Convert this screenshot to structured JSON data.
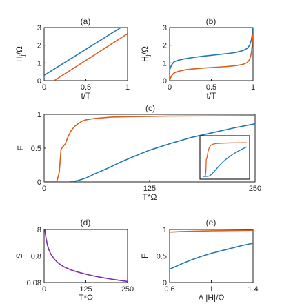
{
  "colors": {
    "blue": "#1f78b4",
    "orange": "#d95f1e",
    "purple": "#7b2fa6",
    "axis": "#222222"
  },
  "chart_data": [
    {
      "panel": "(a)",
      "type": "line",
      "xlabel": "t/T",
      "ylabel": "H_j/Ω",
      "xlim": [
        0,
        1
      ],
      "ylim": [
        0,
        3
      ],
      "xticks": [
        "0",
        "0.5",
        "1"
      ],
      "yticks": [
        "0",
        "1",
        "2",
        "3"
      ],
      "series": [
        {
          "color": "blue",
          "x": [
            0,
            0.92
          ],
          "y": [
            0.3,
            3.0
          ]
        },
        {
          "color": "orange",
          "x": [
            0.12,
            1.0
          ],
          "y": [
            0.0,
            2.65
          ]
        }
      ]
    },
    {
      "panel": "(b)",
      "type": "line",
      "xlabel": "t/T",
      "ylabel": "H_j/Ω",
      "xlim": [
        0,
        1
      ],
      "ylim": [
        0,
        3
      ],
      "xticks": [
        "0",
        "0.5",
        "1"
      ],
      "yticks": [
        "0",
        "1",
        "2",
        "3"
      ],
      "series": [
        {
          "color": "blue",
          "x": [
            0,
            0.02,
            0.05,
            0.1,
            0.2,
            0.3,
            0.4,
            0.5,
            0.6,
            0.7,
            0.8,
            0.88,
            0.93,
            0.96,
            0.98,
            0.99,
            1.0
          ],
          "y": [
            0.6,
            0.85,
            1.05,
            1.15,
            1.25,
            1.32,
            1.38,
            1.43,
            1.48,
            1.53,
            1.6,
            1.7,
            1.82,
            2.0,
            2.3,
            2.6,
            3.0
          ]
        },
        {
          "color": "orange",
          "x": [
            0,
            0.02,
            0.05,
            0.1,
            0.2,
            0.3,
            0.4,
            0.5,
            0.6,
            0.7,
            0.8,
            0.88,
            0.93,
            0.96,
            0.98,
            0.99,
            1.0
          ],
          "y": [
            0.0,
            0.25,
            0.42,
            0.52,
            0.62,
            0.67,
            0.71,
            0.74,
            0.77,
            0.8,
            0.85,
            0.92,
            1.02,
            1.2,
            1.55,
            2.0,
            2.65
          ]
        }
      ]
    },
    {
      "panel": "(c)",
      "type": "line",
      "xlabel": "T*Ω",
      "ylabel": "F",
      "xlim": [
        0,
        250
      ],
      "ylim": [
        0,
        1
      ],
      "xticks": [
        "0",
        "125",
        "250"
      ],
      "yticks": [
        "0",
        "0.5",
        "1"
      ],
      "series": [
        {
          "color": "orange",
          "x": [
            0,
            15,
            18,
            20,
            22,
            25,
            28,
            32,
            36,
            40,
            45,
            50,
            60,
            70,
            80,
            100,
            125,
            150,
            200,
            250
          ],
          "y": [
            0,
            0,
            0.15,
            0.48,
            0.52,
            0.56,
            0.66,
            0.76,
            0.82,
            0.86,
            0.9,
            0.92,
            0.94,
            0.95,
            0.96,
            0.965,
            0.97,
            0.975,
            0.978,
            0.98
          ]
        },
        {
          "color": "blue",
          "x": [
            0,
            30,
            40,
            50,
            60,
            75,
            90,
            105,
            125,
            150,
            175,
            200,
            225,
            250
          ],
          "y": [
            0,
            0,
            0.02,
            0.06,
            0.12,
            0.2,
            0.29,
            0.37,
            0.47,
            0.57,
            0.66,
            0.73,
            0.8,
            0.86
          ]
        }
      ],
      "inset": {
        "legend": "inset, bottom-right"
      }
    },
    {
      "panel": "(d)",
      "type": "line",
      "xlabel": "T*Ω",
      "ylabel": "S",
      "xlim": [
        0,
        250
      ],
      "ylim": [
        0.08,
        8
      ],
      "yscale": "log",
      "xticks": [
        "0",
        "125",
        "250"
      ],
      "yticks": [
        "0.08",
        "0.8",
        "8"
      ],
      "series": [
        {
          "color": "purple",
          "x": [
            2,
            5,
            10,
            15,
            20,
            30,
            40,
            50,
            60,
            80,
            100,
            125,
            150,
            175,
            200,
            225,
            250
          ],
          "y": [
            8,
            4.2,
            2.0,
            1.3,
            0.95,
            0.62,
            0.46,
            0.37,
            0.31,
            0.24,
            0.2,
            0.165,
            0.14,
            0.122,
            0.108,
            0.097,
            0.088
          ]
        }
      ]
    },
    {
      "panel": "(e)",
      "type": "line",
      "xlabel": "Δ |H|/Ω",
      "ylabel": "F",
      "xlim": [
        0.6,
        1.4
      ],
      "ylim": [
        0,
        1
      ],
      "xticks": [
        "0.6",
        "1",
        "1.4"
      ],
      "yticks": [
        "0",
        "0.5",
        "1"
      ],
      "series": [
        {
          "color": "orange",
          "x": [
            0.6,
            0.7,
            0.8,
            0.9,
            1.0,
            1.1,
            1.2,
            1.3,
            1.4
          ],
          "y": [
            0.95,
            0.96,
            0.965,
            0.97,
            0.975,
            0.977,
            0.98,
            0.982,
            0.985
          ]
        },
        {
          "color": "blue",
          "x": [
            0.6,
            0.7,
            0.8,
            0.9,
            1.0,
            1.1,
            1.2,
            1.3,
            1.4
          ],
          "y": [
            0.25,
            0.34,
            0.42,
            0.49,
            0.55,
            0.6,
            0.65,
            0.7,
            0.74
          ]
        }
      ]
    }
  ]
}
